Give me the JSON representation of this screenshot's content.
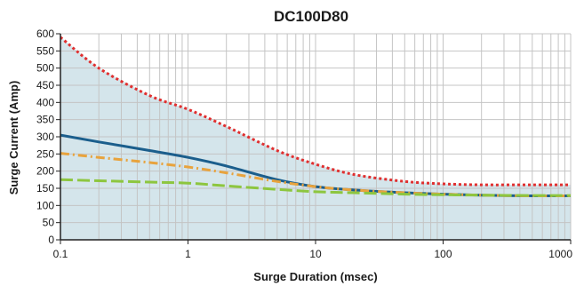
{
  "chart_data": {
    "type": "line",
    "title": "DC100D80",
    "xlabel": "Surge Duration (msec)",
    "ylabel": "Surge Current (Amp)",
    "xscale": "log",
    "xlim": [
      0.1,
      1000
    ],
    "ylim": [
      0,
      600
    ],
    "x_ticks": [
      "0.1",
      "1",
      "10",
      "100",
      "1000"
    ],
    "y_ticks": [
      "0",
      "50",
      "100",
      "150",
      "200",
      "250",
      "300",
      "350",
      "400",
      "450",
      "500",
      "550",
      "600"
    ],
    "grid": true,
    "legend": "none",
    "colors": {
      "fill": "#d4e5eb",
      "grid": "#c4c4c4",
      "axis": "#222222"
    },
    "series": [
      {
        "style": "dotted",
        "color": "#e02f2f",
        "x": [
          0.1,
          0.2,
          0.5,
          1,
          2,
          5,
          10,
          20,
          50,
          100,
          200,
          500,
          1000
        ],
        "y": [
          590,
          500,
          420,
          380,
          330,
          260,
          220,
          190,
          170,
          163,
          160,
          160,
          160
        ]
      },
      {
        "style": "solid",
        "color": "#1b5e8c",
        "x": [
          0.1,
          0.2,
          0.5,
          1,
          2,
          5,
          10,
          20,
          50,
          100,
          200,
          500,
          1000
        ],
        "y": [
          305,
          285,
          260,
          240,
          215,
          175,
          155,
          145,
          137,
          133,
          130,
          128,
          128
        ]
      },
      {
        "style": "dash-dot",
        "color": "#e8a33d",
        "x": [
          0.1,
          0.2,
          0.5,
          1,
          2,
          5,
          10,
          20,
          50,
          100,
          200,
          500,
          1000
        ],
        "y": [
          252,
          240,
          225,
          212,
          195,
          170,
          155,
          145,
          137,
          133,
          130,
          128,
          128
        ]
      },
      {
        "style": "long-dash",
        "color": "#8dc63f",
        "x": [
          0.1,
          0.2,
          0.5,
          1,
          2,
          5,
          10,
          20,
          50,
          100,
          200,
          500,
          1000
        ],
        "y": [
          175,
          172,
          168,
          165,
          157,
          147,
          140,
          137,
          133,
          131,
          130,
          129,
          129
        ]
      }
    ]
  }
}
